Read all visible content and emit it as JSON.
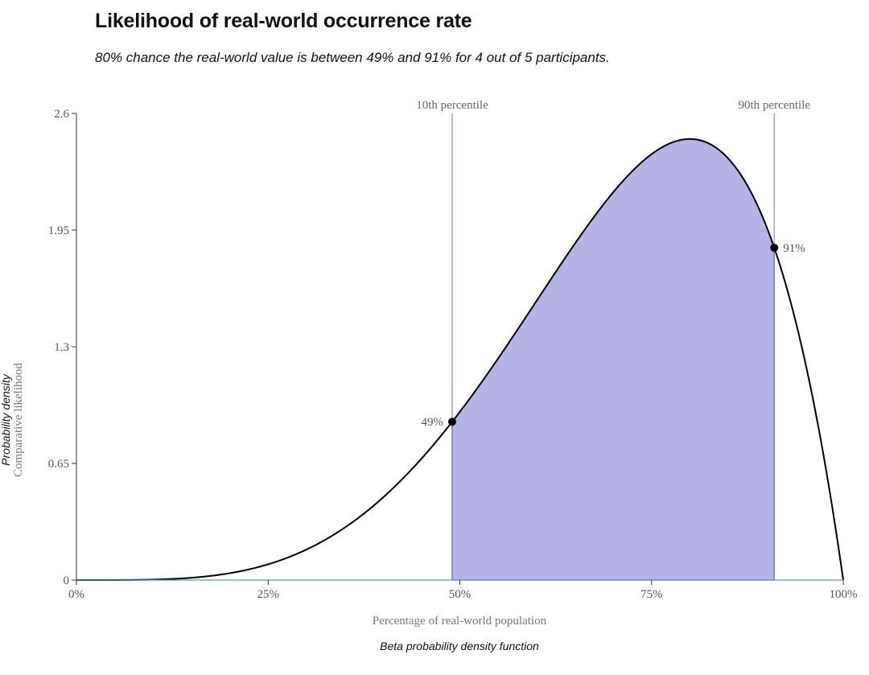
{
  "header": {
    "title": "Likelihood of real-world occurrence rate",
    "subtitle": "80% chance the real-world value is between 49% and 91% for 4 out of 5 participants."
  },
  "chart_data": {
    "type": "area",
    "distribution": "beta",
    "alpha": 5,
    "beta": 2,
    "xlabel": "Percentage of real-world population",
    "ylabel": "Comparative likelihood",
    "ylabel_secondary": "Probability density",
    "caption": "Beta probability density function",
    "xlim": [
      0,
      1
    ],
    "ylim": [
      0,
      2.6
    ],
    "x_ticks": [
      0,
      0.25,
      0.5,
      0.75,
      1
    ],
    "x_tick_labels": [
      "0%",
      "25%",
      "50%",
      "75%",
      "100%"
    ],
    "y_ticks": [
      0,
      0.65,
      1.3,
      1.95,
      2.6
    ],
    "y_tick_labels": [
      "0",
      "0.65",
      "1.3",
      "1.95",
      "2.6"
    ],
    "grid": false,
    "percentiles": [
      {
        "label": "10th percentile",
        "x": 0.49,
        "point_label": "49%"
      },
      {
        "label": "90th percentile",
        "x": 0.91,
        "point_label": "91%"
      }
    ],
    "colors": {
      "shade": "#b6b4e7",
      "shade_edge": "#4a6fa0",
      "curve": "#000000",
      "percentile_line": "#8f8cc9",
      "baseline": "#5b93c6",
      "point": "#000000"
    }
  }
}
